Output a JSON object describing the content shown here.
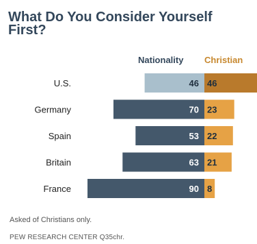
{
  "chart_data": {
    "type": "bar",
    "title": "What Do You Consider Yourself First?",
    "categories": [
      "U.S.",
      "Germany",
      "Spain",
      "Britain",
      "France"
    ],
    "series": [
      {
        "name": "Nationality",
        "values": [
          46,
          70,
          53,
          63,
          90
        ]
      },
      {
        "name": "Christian",
        "values": [
          46,
          23,
          22,
          21,
          8
        ]
      }
    ],
    "colors": {
      "nationality": "#44586b",
      "nationality_highlight": "#a9bfcc",
      "christian": "#e6a245",
      "christian_highlight": "#b97a2c"
    },
    "highlight_category": "U.S.",
    "legend_position": "top",
    "grid": false,
    "note": "Asked of Christians only.",
    "source": "PEW RESEARCH CENTER Q35chr."
  }
}
